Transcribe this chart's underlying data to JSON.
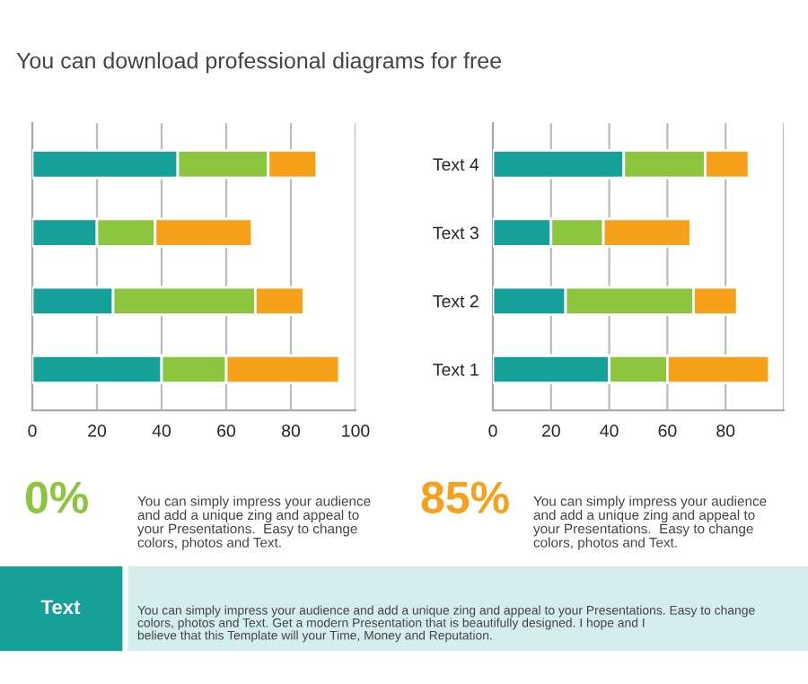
{
  "chart_data": [
    {
      "type": "bar",
      "orientation": "horizontal",
      "stacked": true,
      "subtitle": "You can download professional diagrams for free",
      "categories": [
        null,
        null,
        null,
        null
      ],
      "series": [
        {
          "color": "#16a09a",
          "values": [
            45,
            20,
            25,
            40
          ]
        },
        {
          "color": "#8cc63f",
          "values": [
            28,
            18,
            44,
            20
          ]
        },
        {
          "color": "#f7a11a",
          "values": [
            15,
            30,
            15,
            35
          ]
        }
      ],
      "xlim": [
        0,
        100
      ],
      "xticks": [
        0,
        20,
        40,
        60,
        80,
        100
      ],
      "grid": "x",
      "tick_labels": "x",
      "annotations": [
        "0%",
        "You can simply impress your audience\nand add a unique zing and appeal to\nyour Presentations.  Easy to change\ncolors, photos and Text."
      ]
    },
    {
      "type": "bar",
      "orientation": "horizontal",
      "stacked": true,
      "categories": [
        "Text 4",
        "Text 3",
        "Text 2",
        "Text 1"
      ],
      "series": [
        {
          "color": "#16a09a",
          "values": [
            45,
            20,
            25,
            40
          ]
        },
        {
          "color": "#8cc63f",
          "values": [
            28,
            18,
            44,
            20
          ]
        },
        {
          "color": "#f7a11a",
          "values": [
            15,
            30,
            15,
            35
          ]
        }
      ],
      "xlim": [
        0,
        100
      ],
      "xticks": [
        0,
        20,
        40,
        60,
        80,
        {
          "value": 100,
          "label": null
        }
      ],
      "grid": "x",
      "annotations": [
        "85%",
        "You can simply impress your audience\nand add a unique zing and appeal to\nyour Presentations.  Easy to change\ncolors, photos and Text.",
        "Text",
        "You can simply impress your audience and add a unique zing and appeal to your Presentations. Easy to change\ncolors, photos and Text. Get a modern Presentation that is beautifully designed. I hope and I\nbelieve that this Template will your Time, Money and Reputation."
      ]
    }
  ]
}
